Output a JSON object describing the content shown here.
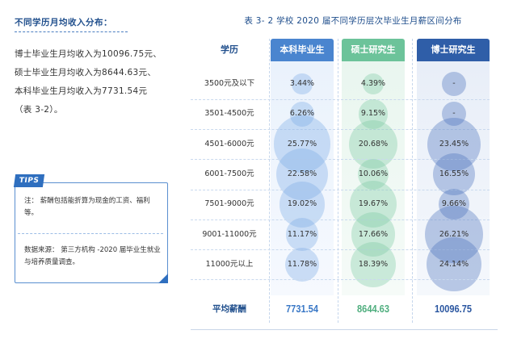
{
  "left": {
    "heading": "不同学历月均收入分布：",
    "lines": [
      "博士毕业生月均收入为10096.75元、",
      "硕士毕业生月均收入为8644.63元、",
      "本科毕业生月均收入为7731.54元",
      "（表 3-2）。"
    ]
  },
  "tips": {
    "badge": "TIPS",
    "note": "注：  薪酬包括能折算为现金的工资、福利等。",
    "source": "数据来源：  第三方机构 -2020 届毕业生就业与培养质量调查。"
  },
  "table": {
    "title": "表 3- 2  学校 2020 届不同学历层次毕业生月薪区间分布",
    "headers": {
      "xueli": "学历",
      "benke": "本科毕业生",
      "shuoshi": "硕士研究生",
      "boshi": "博士研究生"
    },
    "rows": [
      {
        "label": "3500元及以下",
        "benke": "3.44%",
        "shuoshi": "4.39%",
        "boshi": "-"
      },
      {
        "label": "3501-4500元",
        "benke": "6.26%",
        "shuoshi": "9.15%",
        "boshi": "-"
      },
      {
        "label": "4501-6000元",
        "benke": "25.77%",
        "shuoshi": "20.68%",
        "boshi": "23.45%"
      },
      {
        "label": "6001-7500元",
        "benke": "22.58%",
        "shuoshi": "10.06%",
        "boshi": "16.55%"
      },
      {
        "label": "7501-9000元",
        "benke": "19.02%",
        "shuoshi": "19.67%",
        "boshi": "9.66%"
      },
      {
        "label": "9001-11000元",
        "benke": "11.17%",
        "shuoshi": "17.66%",
        "boshi": "26.21%"
      },
      {
        "label": "11000元以上",
        "benke": "11.78%",
        "shuoshi": "18.39%",
        "boshi": "24.14%"
      }
    ],
    "average": {
      "label": "平均薪酬",
      "benke": "7731.54",
      "shuoshi": "8644.63",
      "boshi": "10096.75"
    },
    "colors": {
      "benke": "#4a85cf",
      "shuoshi": "#6cc39a",
      "boshi": "#2f5ea8",
      "heading": "#1f4e8c"
    }
  }
}
